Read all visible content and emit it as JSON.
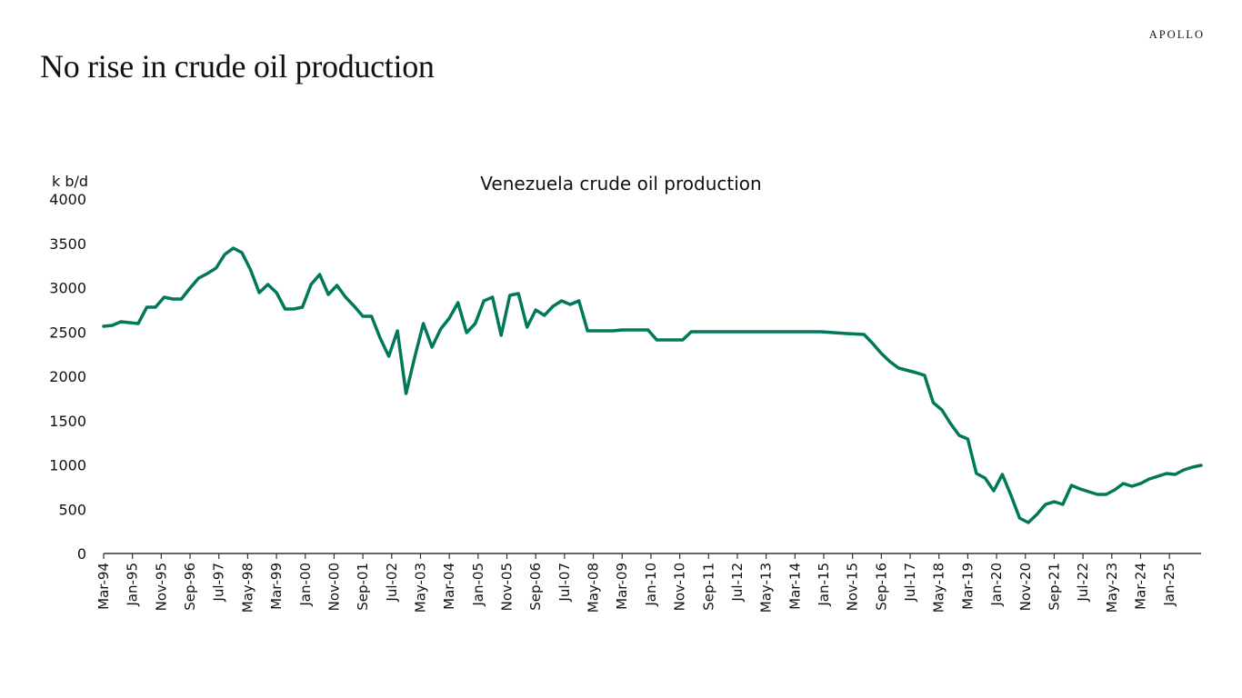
{
  "slide": {
    "title": "No rise in crude oil production",
    "logo": "APOLLO"
  },
  "chart_data": {
    "type": "line",
    "title": "Venezuela crude oil production",
    "ylabel": "k b/d",
    "xlabel": "",
    "ylim": [
      0,
      4000
    ],
    "yticks": [
      0,
      500,
      1000,
      1500,
      2000,
      2500,
      3000,
      3500,
      4000
    ],
    "xlim": [
      "1994-03",
      "2025-12"
    ],
    "xtick_labels": [
      "Mar-94",
      "Jan-95",
      "Nov-95",
      "Sep-96",
      "Jul-97",
      "May-98",
      "Mar-99",
      "Jan-00",
      "Nov-00",
      "Sep-01",
      "Jul-02",
      "May-03",
      "Mar-04",
      "Jan-05",
      "Nov-05",
      "Sep-06",
      "Jul-07",
      "May-08",
      "Mar-09",
      "Jan-10",
      "Nov-10",
      "Sep-11",
      "Jul-12",
      "May-13",
      "Mar-14",
      "Jan-15",
      "Nov-15",
      "Sep-16",
      "Jul-17",
      "May-18",
      "Mar-19",
      "Jan-20",
      "Nov-20",
      "Sep-21",
      "Jul-22",
      "May-23",
      "Mar-24",
      "Jan-25"
    ],
    "grid": false,
    "legend": "none",
    "series": [
      {
        "color": "#00785A",
        "points": [
          [
            "1994-03",
            2564
          ],
          [
            "1994-06",
            2574
          ],
          [
            "1994-09",
            2615
          ],
          [
            "1995-03",
            2595
          ],
          [
            "1995-06",
            2779
          ],
          [
            "1995-09",
            2779
          ],
          [
            "1995-12",
            2892
          ],
          [
            "1996-03",
            2872
          ],
          [
            "1996-06",
            2872
          ],
          [
            "1996-09",
            2995
          ],
          [
            "1996-12",
            3108
          ],
          [
            "1997-03",
            3159
          ],
          [
            "1997-06",
            3221
          ],
          [
            "1997-09",
            3374
          ],
          [
            "1997-12",
            3446
          ],
          [
            "1998-03",
            3395
          ],
          [
            "1998-06",
            3200
          ],
          [
            "1998-09",
            2944
          ],
          [
            "1998-12",
            3036
          ],
          [
            "1999-03",
            2944
          ],
          [
            "1999-06",
            2759
          ],
          [
            "1999-09",
            2759
          ],
          [
            "1999-12",
            2779
          ],
          [
            "2000-03",
            3036
          ],
          [
            "2000-06",
            3149
          ],
          [
            "2000-09",
            2923
          ],
          [
            "2000-12",
            3026
          ],
          [
            "2001-03",
            2892
          ],
          [
            "2001-06",
            2790
          ],
          [
            "2001-09",
            2677
          ],
          [
            "2001-12",
            2677
          ],
          [
            "2002-03",
            2431
          ],
          [
            "2002-06",
            2226
          ],
          [
            "2002-09",
            2513
          ],
          [
            "2002-12",
            1805
          ],
          [
            "2003-03",
            2215
          ],
          [
            "2003-06",
            2595
          ],
          [
            "2003-09",
            2328
          ],
          [
            "2003-12",
            2533
          ],
          [
            "2004-03",
            2656
          ],
          [
            "2004-06",
            2831
          ],
          [
            "2004-09",
            2492
          ],
          [
            "2004-12",
            2595
          ],
          [
            "2005-03",
            2851
          ],
          [
            "2005-06",
            2892
          ],
          [
            "2005-09",
            2462
          ],
          [
            "2005-12",
            2913
          ],
          [
            "2006-03",
            2933
          ],
          [
            "2006-06",
            2554
          ],
          [
            "2006-09",
            2749
          ],
          [
            "2006-12",
            2687
          ],
          [
            "2007-03",
            2790
          ],
          [
            "2007-06",
            2851
          ],
          [
            "2007-09",
            2810
          ],
          [
            "2007-12",
            2851
          ],
          [
            "2008-03",
            2513
          ],
          [
            "2008-12",
            2513
          ],
          [
            "2009-03",
            2523
          ],
          [
            "2009-12",
            2523
          ],
          [
            "2010-03",
            2410
          ],
          [
            "2010-12",
            2410
          ],
          [
            "2011-03",
            2503
          ],
          [
            "2014-12",
            2503
          ],
          [
            "2015-09",
            2482
          ],
          [
            "2016-03",
            2472
          ],
          [
            "2016-06",
            2369
          ],
          [
            "2016-09",
            2256
          ],
          [
            "2016-12",
            2164
          ],
          [
            "2017-03",
            2092
          ],
          [
            "2017-09",
            2041
          ],
          [
            "2017-12",
            2010
          ],
          [
            "2018-03",
            1703
          ],
          [
            "2018-06",
            1621
          ],
          [
            "2018-09",
            1467
          ],
          [
            "2018-12",
            1333
          ],
          [
            "2019-03",
            1292
          ],
          [
            "2019-06",
            903
          ],
          [
            "2019-09",
            851
          ],
          [
            "2019-12",
            708
          ],
          [
            "2020-03",
            892
          ],
          [
            "2020-06",
            656
          ],
          [
            "2020-09",
            400
          ],
          [
            "2020-12",
            349
          ],
          [
            "2021-03",
            441
          ],
          [
            "2021-06",
            554
          ],
          [
            "2021-09",
            585
          ],
          [
            "2021-12",
            554
          ],
          [
            "2022-03",
            769
          ],
          [
            "2022-06",
            728
          ],
          [
            "2022-09",
            697
          ],
          [
            "2022-12",
            667
          ],
          [
            "2023-03",
            667
          ],
          [
            "2023-06",
            718
          ],
          [
            "2023-09",
            790
          ],
          [
            "2023-12",
            759
          ],
          [
            "2024-03",
            790
          ],
          [
            "2024-06",
            841
          ],
          [
            "2024-09",
            872
          ],
          [
            "2024-12",
            903
          ],
          [
            "2025-03",
            892
          ],
          [
            "2025-06",
            944
          ],
          [
            "2025-09",
            974
          ],
          [
            "2025-12",
            995
          ]
        ]
      }
    ]
  }
}
